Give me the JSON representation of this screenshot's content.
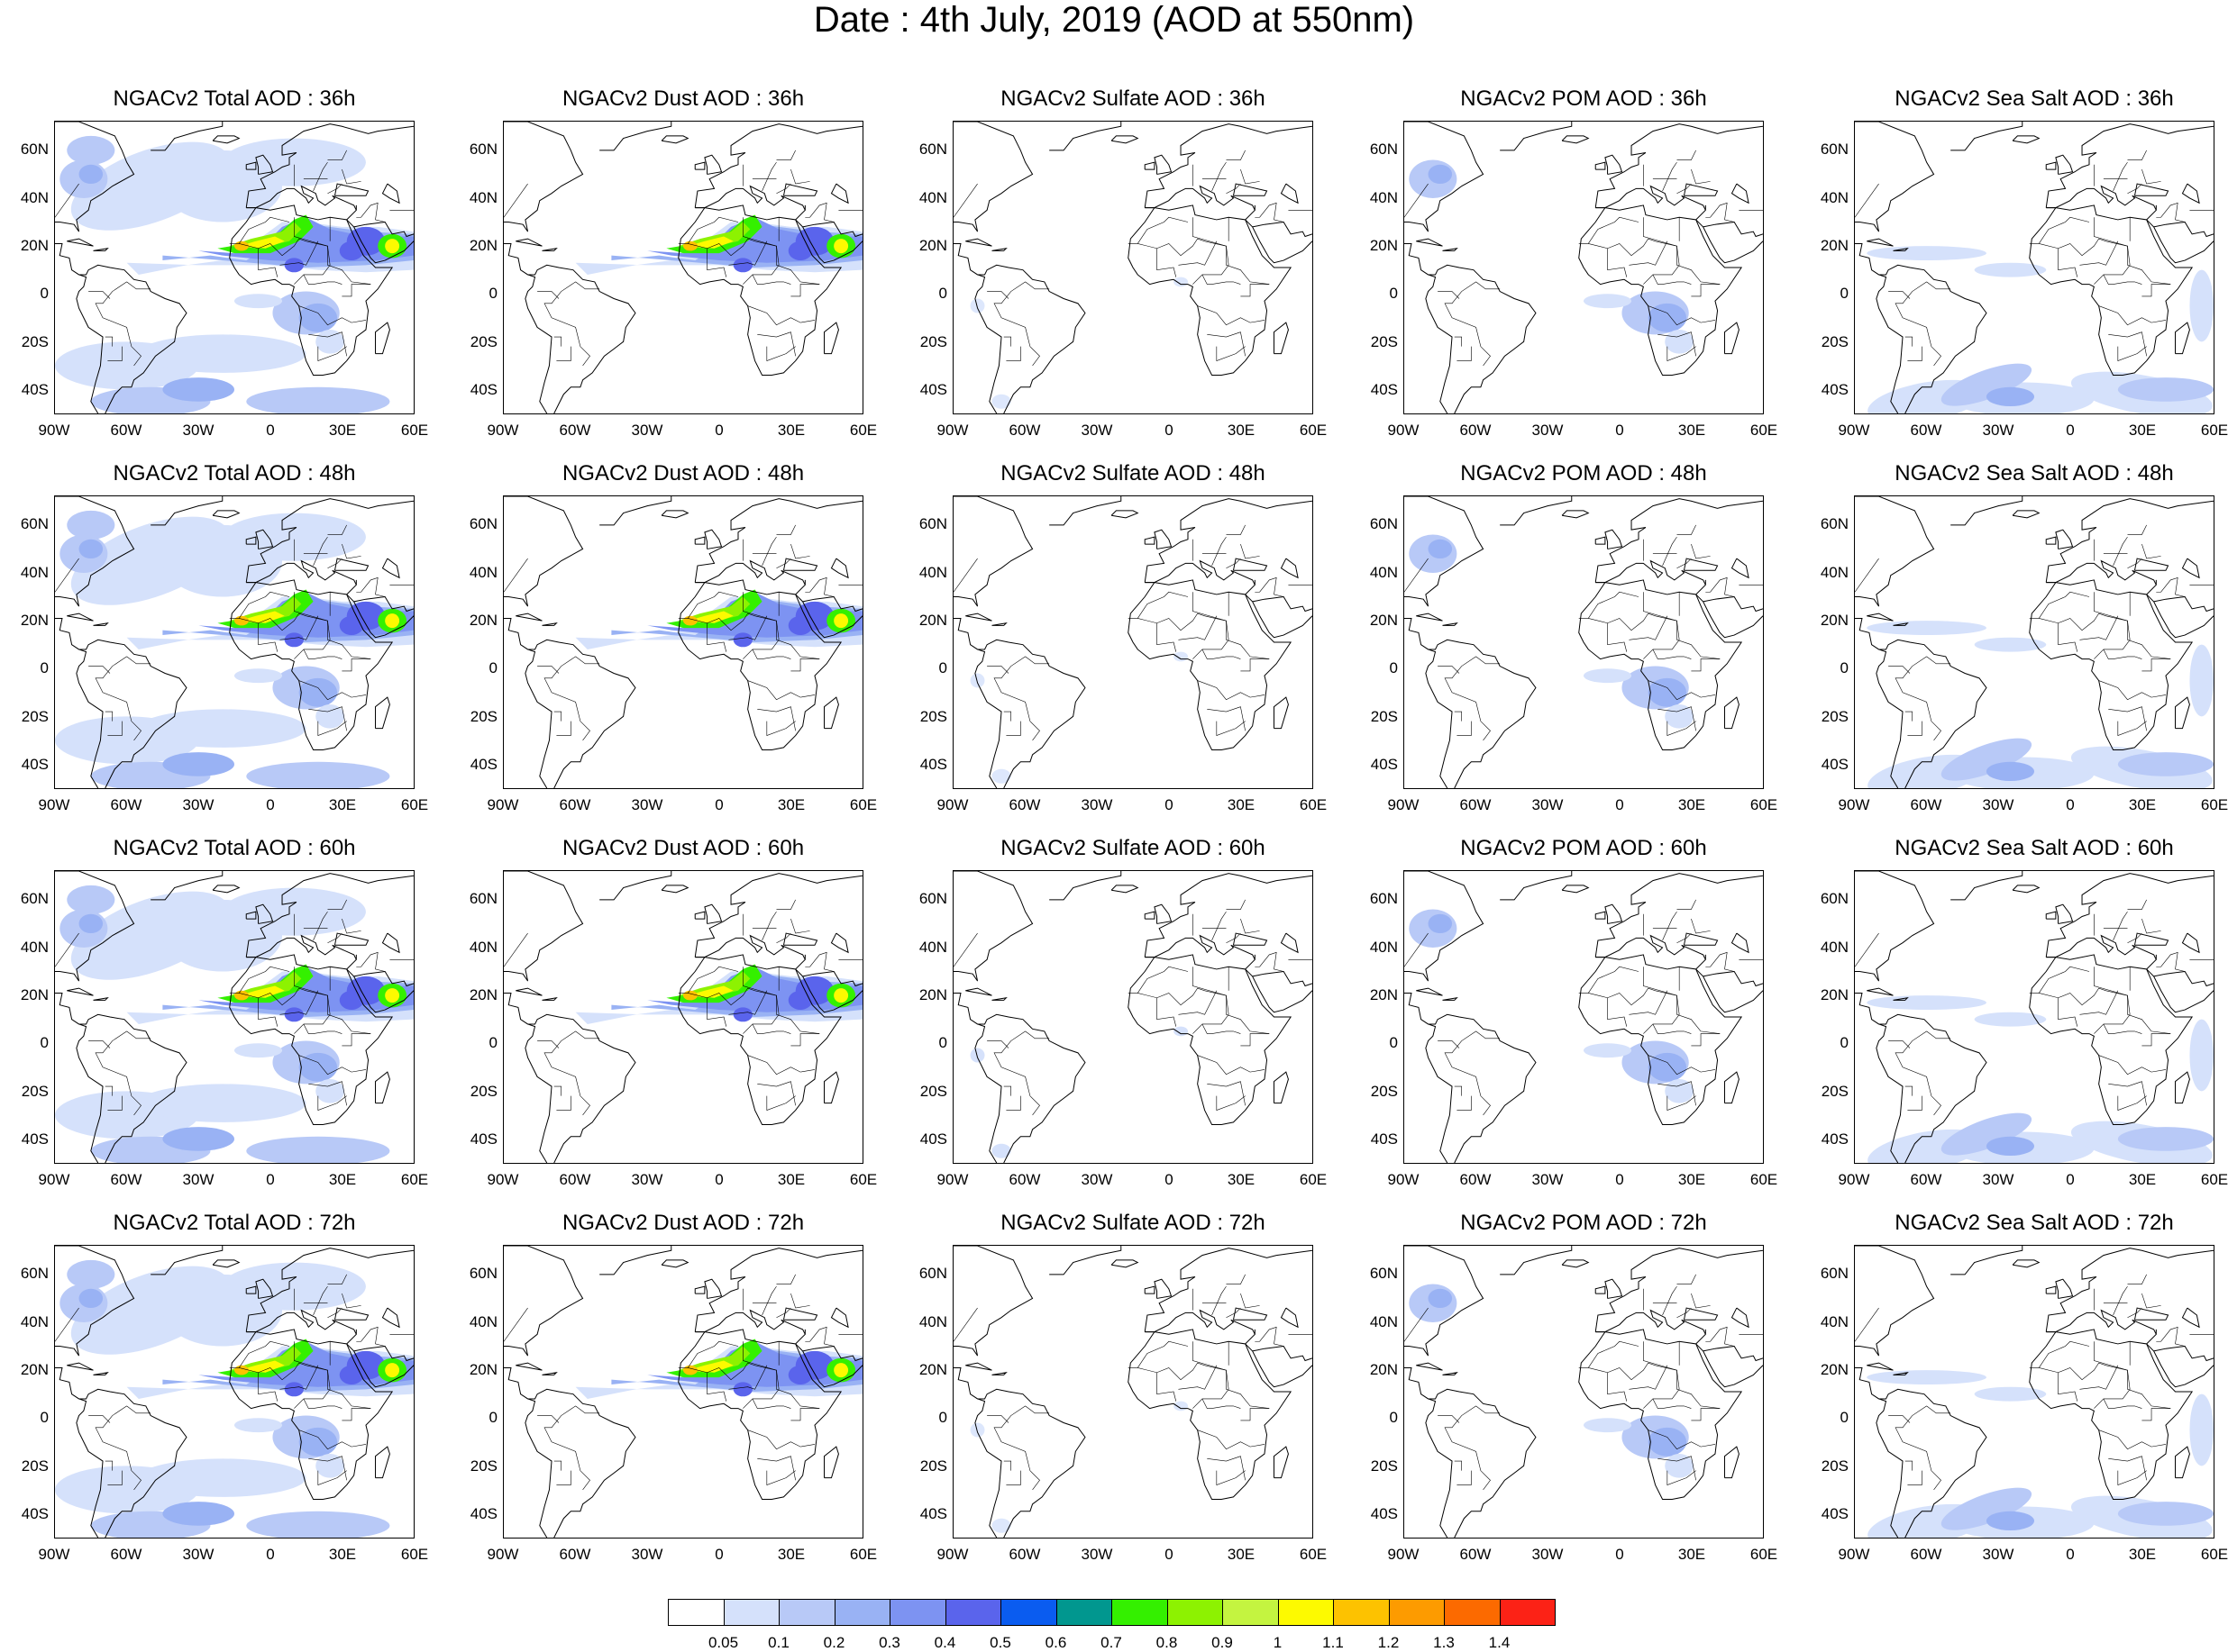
{
  "title": "Date : 4th July, 2019 (AOD at 550nm)",
  "lat_labels": [
    "60N",
    "40N",
    "20N",
    "0",
    "20S",
    "40S"
  ],
  "lon_labels": [
    "90W",
    "60W",
    "30W",
    "0",
    "30E",
    "60E"
  ],
  "panels": [
    {
      "title": "NGACv2 Total AOD : 36h",
      "field": "total",
      "hour": 36
    },
    {
      "title": "NGACv2 Dust AOD : 36h",
      "field": "dust",
      "hour": 36
    },
    {
      "title": "NGACv2 Sulfate AOD : 36h",
      "field": "sulfate",
      "hour": 36
    },
    {
      "title": "NGACv2 POM AOD : 36h",
      "field": "pom",
      "hour": 36
    },
    {
      "title": "NGACv2 Sea Salt AOD : 36h",
      "field": "seasalt",
      "hour": 36
    },
    {
      "title": "NGACv2 Total AOD : 48h",
      "field": "total",
      "hour": 48
    },
    {
      "title": "NGACv2 Dust AOD : 48h",
      "field": "dust",
      "hour": 48
    },
    {
      "title": "NGACv2 Sulfate AOD : 48h",
      "field": "sulfate",
      "hour": 48
    },
    {
      "title": "NGACv2 POM AOD : 48h",
      "field": "pom",
      "hour": 48
    },
    {
      "title": "NGACv2 Sea Salt AOD : 48h",
      "field": "seasalt",
      "hour": 48
    },
    {
      "title": "NGACv2 Total AOD : 60h",
      "field": "total",
      "hour": 60
    },
    {
      "title": "NGACv2 Dust AOD : 60h",
      "field": "dust",
      "hour": 60
    },
    {
      "title": "NGACv2 Sulfate AOD : 60h",
      "field": "sulfate",
      "hour": 60
    },
    {
      "title": "NGACv2 POM AOD : 60h",
      "field": "pom",
      "hour": 60
    },
    {
      "title": "NGACv2 Sea Salt AOD : 60h",
      "field": "seasalt",
      "hour": 60
    },
    {
      "title": "NGACv2 Total AOD : 72h",
      "field": "total",
      "hour": 72
    },
    {
      "title": "NGACv2 Dust AOD : 72h",
      "field": "dust",
      "hour": 72
    },
    {
      "title": "NGACv2 Sulfate AOD : 72h",
      "field": "sulfate",
      "hour": 72
    },
    {
      "title": "NGACv2 POM AOD : 72h",
      "field": "pom",
      "hour": 72
    },
    {
      "title": "NGACv2 Sea Salt  AOD : 72h",
      "field": "seasalt",
      "hour": 72
    }
  ],
  "colorbar": {
    "levels": [
      "0.05",
      "0.1",
      "0.2",
      "0.3",
      "0.4",
      "0.5",
      "0.6",
      "0.7",
      "0.8",
      "0.9",
      "1",
      "1.1",
      "1.2",
      "1.3",
      "1.4"
    ],
    "colors": [
      "#ffffff",
      "#d5e1fb",
      "#b8c9f7",
      "#99b2f4",
      "#7d93f2",
      "#5a64ec",
      "#0a5cf0",
      "#01978f",
      "#34f000",
      "#8df201",
      "#c4f440",
      "#fdfa00",
      "#fdc200",
      "#fd9b00",
      "#fc6a00",
      "#fc2216"
    ]
  },
  "map_extent": {
    "lon_min": -90,
    "lon_max": 60,
    "lat_min": -50,
    "lat_max": 72
  }
}
